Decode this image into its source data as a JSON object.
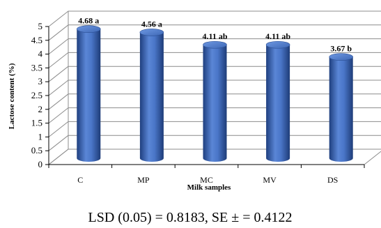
{
  "chart_data": {
    "type": "bar",
    "categories": [
      "C",
      "MP",
      "MC",
      "MV",
      "DS"
    ],
    "values": [
      4.68,
      4.56,
      4.11,
      4.11,
      3.67
    ],
    "data_labels": [
      "4.68 a",
      "4.56 a",
      "4.11 ab",
      "4.11 ab",
      "3.67 b"
    ],
    "xlabel": "Milk samples",
    "ylabel": "Lactose content (%)",
    "ylim": [
      0,
      5
    ],
    "yticks": [
      "0",
      "0.5",
      "1",
      "1.5",
      "2",
      "2.5",
      "3",
      "3.5",
      "4",
      "4.5",
      "5"
    ],
    "grid": true,
    "bar_color": "#3F6CC0",
    "style": "3d-cylinder"
  },
  "footnote": "LSD (0.05) = 0.8183, SE ± = 0.4122"
}
